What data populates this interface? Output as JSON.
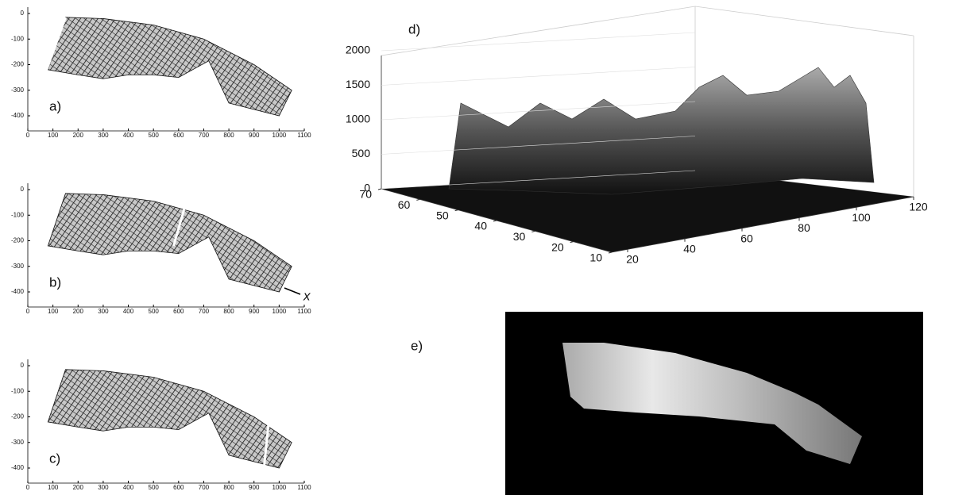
{
  "panels": [
    {
      "label": "a)",
      "xticks": [
        0,
        100,
        200,
        300,
        400,
        500,
        600,
        700,
        800,
        900,
        1000,
        1100
      ],
      "yticks": [
        0,
        -100,
        -200,
        -300,
        -400
      ]
    },
    {
      "label": "b)",
      "xticks": [
        0,
        100,
        200,
        300,
        400,
        500,
        600,
        700,
        800,
        900,
        1000,
        1100
      ],
      "yticks": [
        0,
        -100,
        -200,
        -300,
        -400
      ],
      "marker": "x"
    },
    {
      "label": "c)",
      "xticks": [
        0,
        100,
        200,
        300,
        400,
        500,
        600,
        700,
        800,
        900,
        1000,
        1100
      ],
      "yticks": [
        0,
        -100,
        -200,
        -300,
        -400
      ]
    },
    {
      "label": "d)",
      "zticks": [
        2000,
        1500,
        1000,
        500,
        0
      ],
      "yticks": [
        70,
        60,
        50,
        40,
        30,
        20,
        10
      ],
      "xticks": [
        20,
        40,
        60,
        80,
        100,
        120
      ]
    },
    {
      "label": "e)"
    }
  ]
}
